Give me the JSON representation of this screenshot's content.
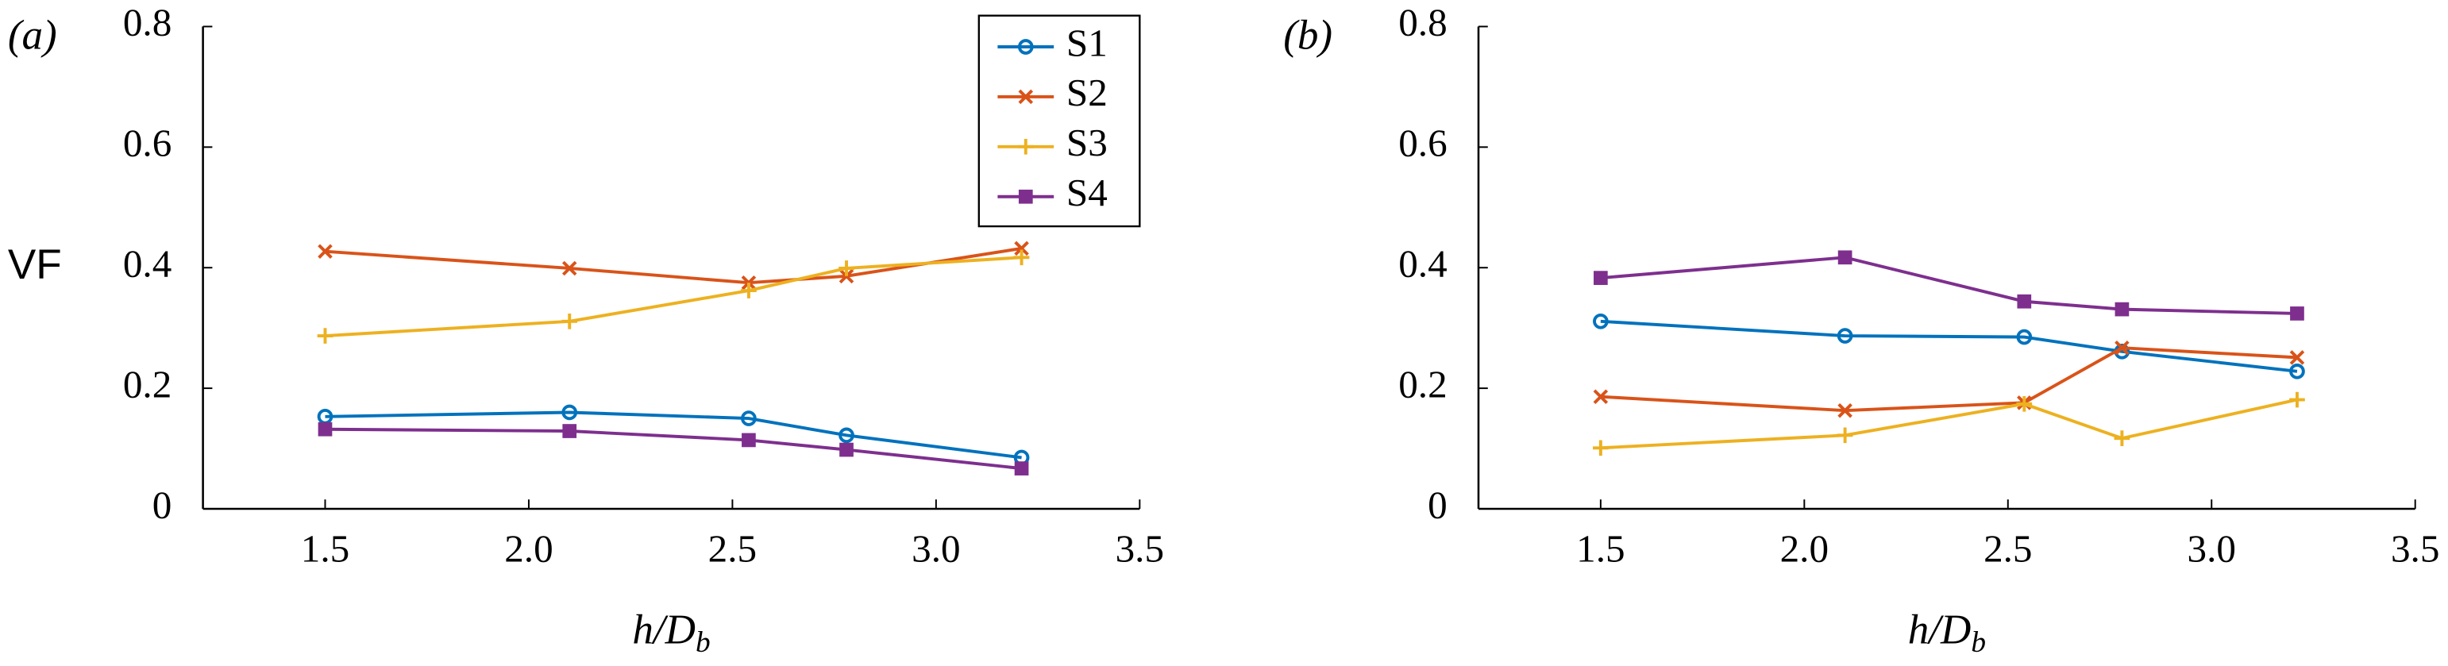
{
  "chart_data": [
    {
      "type": "line",
      "panel_label": "(a)",
      "y_label": "VF",
      "x_label": "h/D",
      "x_label_subscript": "b",
      "x": [
        1.5,
        2.1,
        2.54,
        2.78,
        3.21
      ],
      "series": [
        {
          "name": "S1",
          "color": "#0072bd",
          "marker": "circle",
          "values": [
            0.153,
            0.16,
            0.15,
            0.122,
            0.085
          ]
        },
        {
          "name": "S2",
          "color": "#d95319",
          "marker": "x",
          "values": [
            0.427,
            0.399,
            0.375,
            0.386,
            0.432
          ]
        },
        {
          "name": "S3",
          "color": "#edb120",
          "marker": "plus",
          "values": [
            0.287,
            0.311,
            0.362,
            0.399,
            0.417
          ]
        },
        {
          "name": "S4",
          "color": "#7e2f8e",
          "marker": "square",
          "values": [
            0.132,
            0.129,
            0.114,
            0.098,
            0.067
          ]
        }
      ],
      "xlim": [
        1.2,
        3.5
      ],
      "ylim": [
        0,
        0.8
      ],
      "xticks": [
        1.5,
        {
          "value": 2,
          "label": "2.0"
        },
        2.5,
        {
          "value": 3,
          "label": "3.0"
        },
        3.5
      ],
      "yticks": [
        0,
        0.2,
        0.4,
        0.6,
        0.8
      ],
      "legend": "upper right"
    },
    {
      "type": "line",
      "panel_label": "(b)",
      "x_label": "h/D",
      "x_label_subscript": "b",
      "x": [
        1.5,
        2.1,
        2.54,
        2.78,
        3.21
      ],
      "series": [
        {
          "name": "S1",
          "color": "#0072bd",
          "marker": "circle",
          "values": [
            0.311,
            0.287,
            0.285,
            0.261,
            0.228
          ]
        },
        {
          "name": "S2",
          "color": "#d95319",
          "marker": "x",
          "values": [
            0.186,
            0.163,
            0.176,
            0.267,
            0.251
          ]
        },
        {
          "name": "S3",
          "color": "#edb120",
          "marker": "plus",
          "values": [
            0.101,
            0.122,
            0.174,
            0.117,
            0.181
          ]
        },
        {
          "name": "S4",
          "color": "#7e2f8e",
          "marker": "square",
          "values": [
            0.383,
            0.417,
            0.344,
            0.331,
            0.324
          ]
        }
      ],
      "xlim": [
        1.2,
        3.5
      ],
      "ylim": [
        0,
        0.8
      ],
      "xticks": [
        1.5,
        {
          "value": 2,
          "label": "2.0"
        },
        2.5,
        {
          "value": 3,
          "label": "3.0"
        },
        3.5
      ],
      "yticks": [
        0,
        0.2,
        0.4,
        0.6,
        0.8
      ]
    }
  ]
}
